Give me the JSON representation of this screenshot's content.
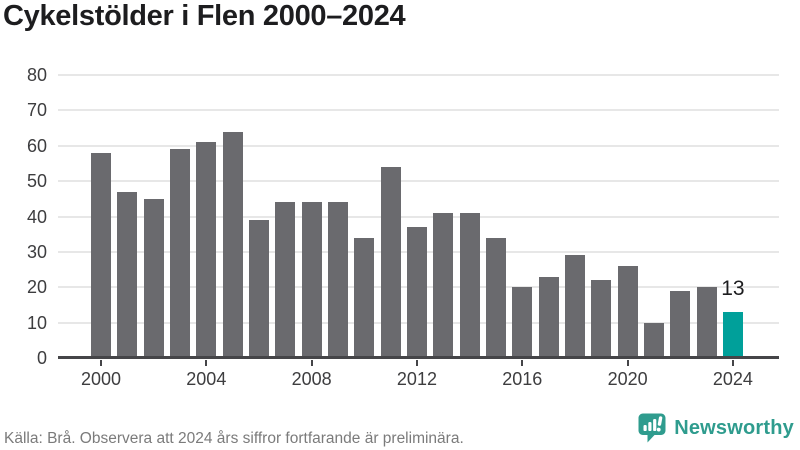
{
  "header": {
    "title": "Cykelstölder i Flen 2000–2024"
  },
  "chart_data": {
    "type": "bar",
    "title": "Cykelstölder i Flen 2000–2024",
    "x": [
      2000,
      2001,
      2002,
      2003,
      2004,
      2005,
      2006,
      2007,
      2008,
      2009,
      2010,
      2011,
      2012,
      2013,
      2014,
      2015,
      2016,
      2017,
      2018,
      2019,
      2020,
      2021,
      2022,
      2023,
      2024
    ],
    "values": [
      58,
      47,
      45,
      59,
      61,
      64,
      39,
      44,
      44,
      44,
      34,
      54,
      37,
      41,
      41,
      34,
      20,
      23,
      29,
      22,
      26,
      10,
      19,
      20,
      13
    ],
    "ylim": [
      0,
      80
    ],
    "ytick_step": 10,
    "xticks": [
      2000,
      2004,
      2008,
      2012,
      2016,
      2020,
      2024
    ],
    "grid": true,
    "legend": "none",
    "bar_color": "#6a6a6e",
    "highlight_color": "#00a09a",
    "highlight_year": 2024,
    "annotation": {
      "x": 2024,
      "label": "13"
    }
  },
  "footer": {
    "source": "Källa: Brå. Observera att 2024 års siffror fortfarande är preliminära.",
    "brand": {
      "name": "Newsworthy",
      "color": "#2f9c8e",
      "icon": "speech-bubble-bar-chart-exclamation-icon"
    }
  }
}
